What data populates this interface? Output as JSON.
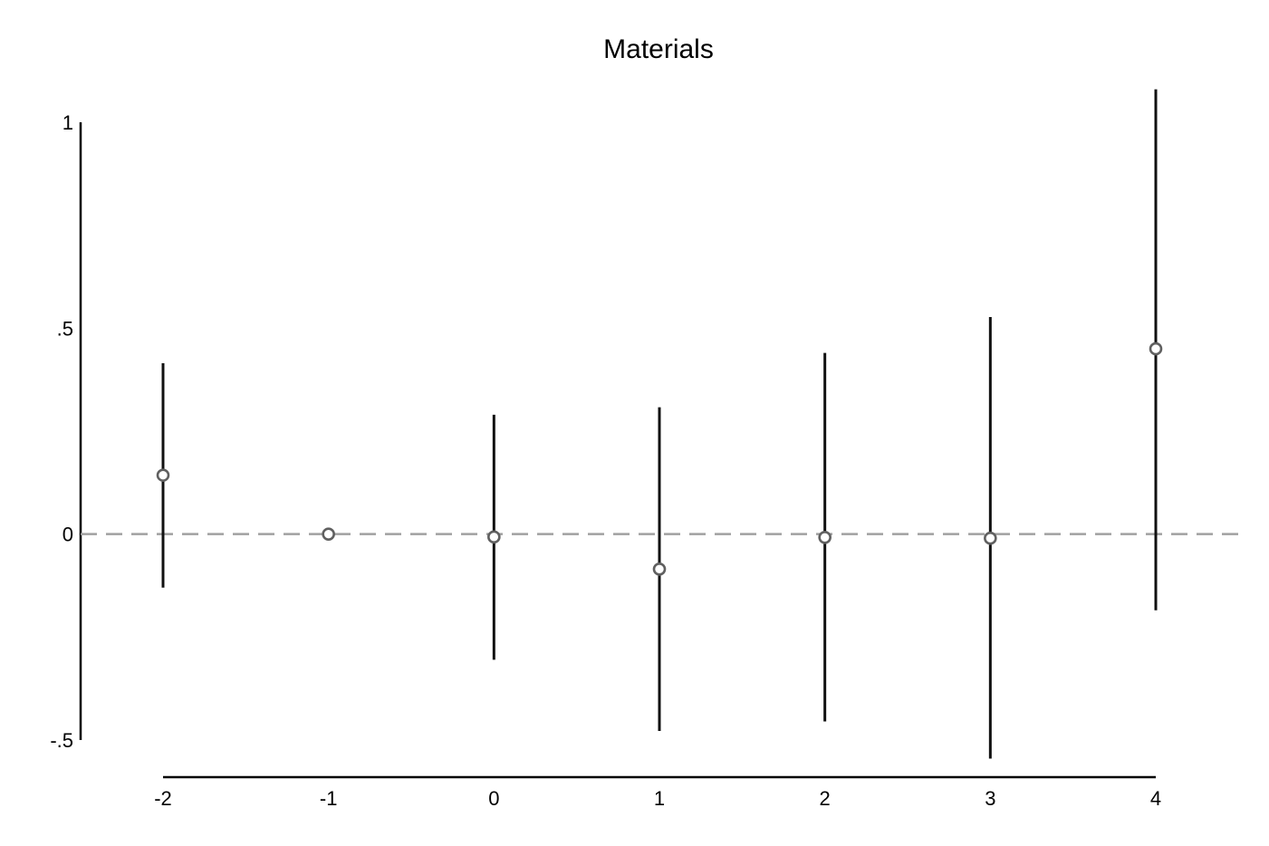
{
  "chart_data": {
    "type": "scatter",
    "title": "Materials",
    "xlabel": "",
    "ylabel": "",
    "x_ticks": [
      {
        "value": -2,
        "label": "-2"
      },
      {
        "value": -1,
        "label": "-1"
      },
      {
        "value": 0,
        "label": "0"
      },
      {
        "value": 1,
        "label": "1"
      },
      {
        "value": 2,
        "label": "2"
      },
      {
        "value": 3,
        "label": "3"
      },
      {
        "value": 4,
        "label": "4"
      }
    ],
    "y_ticks": [
      {
        "value": 1,
        "label": "1"
      },
      {
        "value": 0.5,
        "label": ".5"
      },
      {
        "value": 0,
        "label": "0"
      },
      {
        "value": -0.5,
        "label": "-.5"
      }
    ],
    "xlim": [
      -2,
      4
    ],
    "ylim": [
      -0.5,
      1
    ],
    "reference_line": {
      "y": 0,
      "style": "dashed",
      "color": "#a0a0a0"
    },
    "grid": false,
    "legend": "none",
    "series": [
      {
        "points": [
          {
            "x": -2,
            "y": 0.143,
            "lower": -0.13,
            "upper": 0.415
          },
          {
            "x": -1,
            "y": 0.0,
            "lower": null,
            "upper": null
          },
          {
            "x": 0,
            "y": -0.007,
            "lower": -0.305,
            "upper": 0.29
          },
          {
            "x": 1,
            "y": -0.085,
            "lower": -0.478,
            "upper": 0.308
          },
          {
            "x": 2,
            "y": -0.008,
            "lower": -0.455,
            "upper": 0.44
          },
          {
            "x": 3,
            "y": -0.01,
            "lower": -0.545,
            "upper": 0.527
          },
          {
            "x": 4,
            "y": 0.45,
            "lower": -0.185,
            "upper": 1.08
          }
        ],
        "marker": "hollow-circle",
        "marker_color": "#606060",
        "errorbar_color": "#111111"
      }
    ]
  }
}
